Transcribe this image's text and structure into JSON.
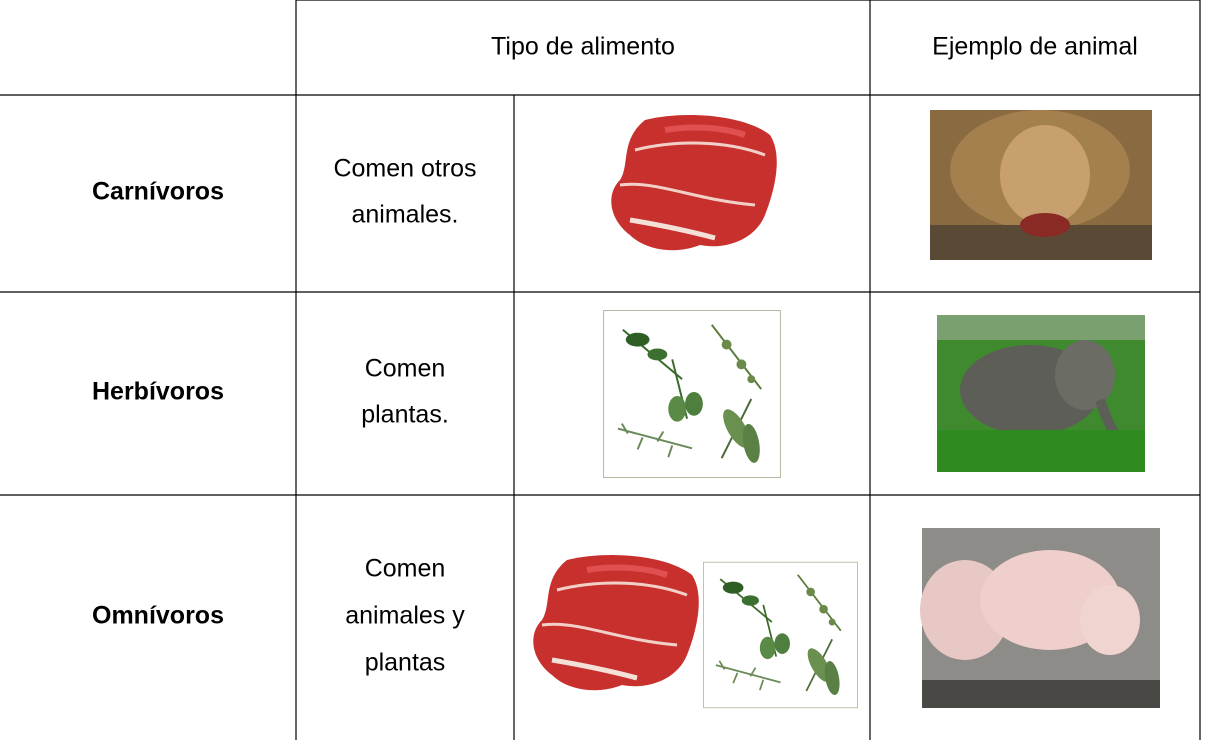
{
  "table": {
    "header": [
      "Tipo de alimento",
      "Ejemplo de animal"
    ],
    "rows": [
      {
        "name": "Carnívoros",
        "description": [
          "Comen otros",
          "animales."
        ]
      },
      {
        "name": "Herbívoros",
        "description": [
          "Comen",
          "plantas."
        ]
      },
      {
        "name": "Omnívoros",
        "description": [
          "Comen",
          "animales y",
          "plantas"
        ]
      }
    ]
  }
}
